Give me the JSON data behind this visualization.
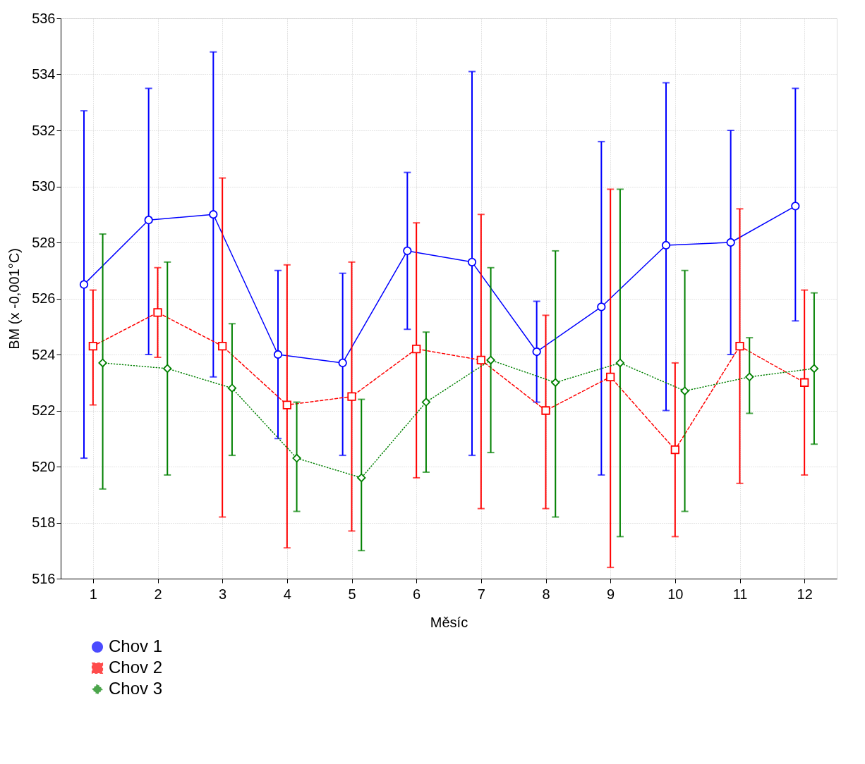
{
  "chart_data": {
    "type": "line",
    "xlabel": "Měsíc",
    "ylabel": "BM (x -0,001°C)",
    "x": [
      1,
      2,
      3,
      4,
      5,
      6,
      7,
      8,
      9,
      10,
      11,
      12
    ],
    "xlim": [
      0.5,
      12.5
    ],
    "xticks": [
      1,
      2,
      3,
      4,
      5,
      6,
      7,
      8,
      9,
      10,
      11,
      12
    ],
    "ylim": [
      516,
      536
    ],
    "yticks": [
      516,
      518,
      520,
      522,
      524,
      526,
      528,
      530,
      532,
      534,
      536
    ],
    "grid": true,
    "legend": "bottom left",
    "series": [
      {
        "name": "Chov 1",
        "color": "#0000ff",
        "marker": "circle",
        "line_style": "solid",
        "x": [
          0.86,
          1.86,
          2.86,
          3.86,
          4.86,
          5.86,
          6.86,
          7.86,
          8.86,
          9.86,
          10.86,
          11.86
        ],
        "values": [
          526.5,
          528.8,
          529.0,
          524.0,
          523.7,
          527.7,
          527.3,
          524.1,
          525.7,
          527.9,
          528.0,
          529.3
        ],
        "errors": [
          [
            520.3,
            532.7
          ],
          [
            524.0,
            533.5
          ],
          [
            523.2,
            534.8
          ],
          [
            521.0,
            527.0
          ],
          [
            520.4,
            526.9
          ],
          [
            524.9,
            530.5
          ],
          [
            520.4,
            534.1
          ],
          [
            522.3,
            525.9
          ],
          [
            519.7,
            531.6
          ],
          [
            522.0,
            533.7
          ],
          [
            524.0,
            532.0
          ],
          [
            525.2,
            533.5
          ]
        ]
      },
      {
        "name": "Chov 2",
        "color": "#ff0000",
        "marker": "square",
        "line_style": "dashed",
        "values": [
          524.3,
          525.5,
          524.3,
          522.2,
          522.5,
          524.2,
          523.8,
          522.0,
          523.2,
          520.6,
          524.3,
          523.0
        ],
        "errors": [
          [
            522.2,
            526.3
          ],
          [
            523.9,
            527.1
          ],
          [
            518.2,
            530.3
          ],
          [
            517.1,
            527.2
          ],
          [
            517.7,
            527.3
          ],
          [
            519.6,
            528.7
          ],
          [
            518.5,
            529.0
          ],
          [
            518.5,
            525.4
          ],
          [
            516.4,
            529.9
          ],
          [
            517.5,
            523.7
          ],
          [
            519.4,
            529.2
          ],
          [
            519.7,
            526.3
          ]
        ]
      },
      {
        "name": "Chov 3",
        "color": "#008000",
        "marker": "diamond",
        "line_style": "dotted",
        "x": [
          1.15,
          2.15,
          3.15,
          4.15,
          5.15,
          6.15,
          7.15,
          8.15,
          9.15,
          10.15,
          11.15,
          12.15
        ],
        "values": [
          523.7,
          523.5,
          522.8,
          520.3,
          519.6,
          522.3,
          523.8,
          523.0,
          523.7,
          522.7,
          523.2,
          523.5
        ],
        "errors": [
          [
            519.2,
            528.3
          ],
          [
            519.7,
            527.3
          ],
          [
            520.4,
            525.1
          ],
          [
            518.4,
            522.3
          ],
          [
            517.0,
            522.4
          ],
          [
            519.8,
            524.8
          ],
          [
            520.5,
            527.1
          ],
          [
            518.2,
            527.7
          ],
          [
            517.5,
            529.9
          ],
          [
            518.4,
            527.0
          ],
          [
            521.9,
            524.6
          ],
          [
            520.8,
            526.2
          ]
        ]
      }
    ]
  }
}
